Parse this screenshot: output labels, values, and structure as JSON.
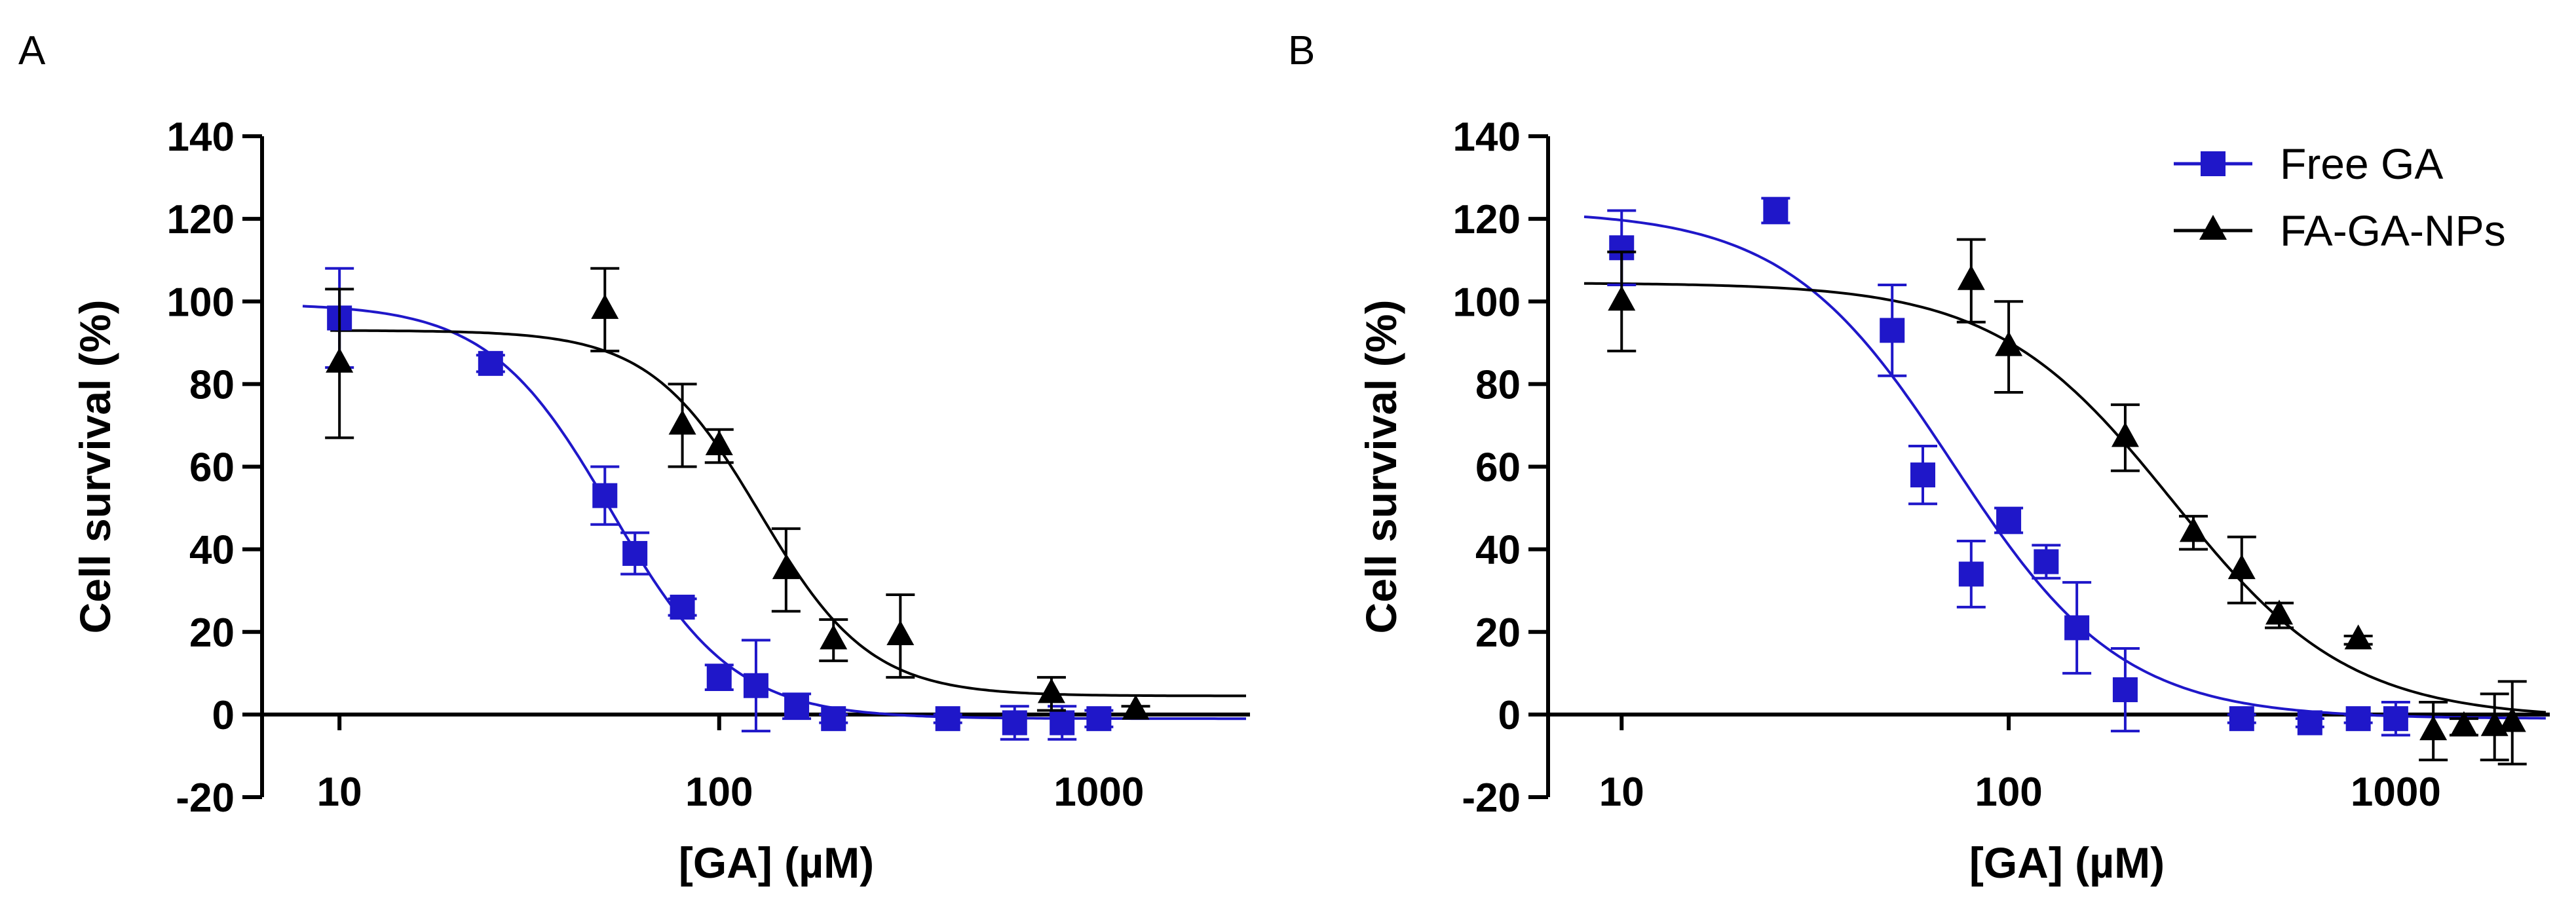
{
  "colors": {
    "free": "#1f17c9",
    "fa": "#000000",
    "axis": "#000000"
  },
  "legend": {
    "entries": [
      {
        "label": "Free GA",
        "series": 0,
        "marker": "square"
      },
      {
        "label": "FA-GA-NPs",
        "series": 1,
        "marker": "triangle"
      }
    ]
  },
  "chart_data": [
    {
      "panel": "A",
      "type": "scatter",
      "xscale": "log",
      "xlim": [
        8,
        2500
      ],
      "ylim": [
        -20,
        140
      ],
      "xticks": [
        10,
        100,
        1000
      ],
      "xtick_labels": [
        "10",
        "100",
        "1000"
      ],
      "yticks": [
        -20,
        0,
        20,
        40,
        60,
        80,
        100,
        120,
        140
      ],
      "ytick_labels": [
        "-20",
        "0",
        "20",
        "40",
        "60",
        "80",
        "100",
        "120",
        "140"
      ],
      "xlabel": "[GA] (µM)",
      "ylabel": "Cell survival (%)",
      "series": [
        {
          "name": "Free GA",
          "marker": "square",
          "x": [
            10,
            25,
            50,
            60,
            80,
            100,
            125,
            160,
            200,
            400,
            600,
            800,
            1000
          ],
          "y": [
            96,
            85,
            53,
            39,
            26,
            9,
            7,
            2,
            -1,
            -1,
            -2,
            -2,
            -1
          ],
          "err": [
            12,
            2,
            7,
            5,
            2,
            3,
            11,
            3,
            1,
            1,
            4,
            4,
            2
          ],
          "fit": {
            "top": 99.5,
            "bottom": -1,
            "ec50": 52,
            "hill": 2.7
          }
        },
        {
          "name": "FA-GA-NPs",
          "marker": "triangle",
          "x": [
            10,
            50,
            80,
            100,
            150,
            200,
            300,
            750,
            1250
          ],
          "y": [
            85,
            98,
            70,
            65,
            35,
            18,
            19,
            5,
            1
          ],
          "err": [
            18,
            10,
            10,
            4,
            10,
            5,
            10,
            4,
            1
          ],
          "fit": {
            "top": 93,
            "bottom": 4.5,
            "ec50": 128,
            "hill": 3.0
          }
        }
      ]
    },
    {
      "panel": "B",
      "type": "scatter",
      "xscale": "log",
      "xlim": [
        8,
        2500
      ],
      "ylim": [
        -20,
        140
      ],
      "xticks": [
        10,
        100,
        1000
      ],
      "xtick_labels": [
        "10",
        "100",
        "1000"
      ],
      "yticks": [
        -20,
        0,
        20,
        40,
        60,
        80,
        100,
        120,
        140
      ],
      "ytick_labels": [
        "-20",
        "0",
        "20",
        "40",
        "60",
        "80",
        "100",
        "120",
        "140"
      ],
      "xlabel": "[GA] (µM)",
      "ylabel": "Cell survival (%)",
      "series": [
        {
          "name": "Free GA",
          "marker": "square",
          "x": [
            10,
            25,
            50,
            60,
            80,
            100,
            125,
            150,
            200,
            400,
            600,
            800,
            1000
          ],
          "y": [
            113,
            122,
            93,
            58,
            34,
            47,
            37,
            21,
            6,
            -1,
            -2,
            -1,
            -1
          ],
          "err": [
            9,
            3,
            11,
            7,
            8,
            3,
            4,
            11,
            10,
            1,
            1,
            1,
            4
          ],
          "fit": {
            "top": 122,
            "bottom": -1,
            "ec50": 72,
            "hill": 2.0
          }
        },
        {
          "name": "FA-GA-NPs",
          "marker": "triangle",
          "x": [
            10,
            80,
            100,
            200,
            300,
            400,
            500,
            800,
            1250,
            1500,
            1800,
            2000
          ],
          "y": [
            100,
            105,
            89,
            67,
            44,
            35,
            24,
            18,
            -4,
            -3,
            -3,
            -2
          ],
          "err": [
            12,
            10,
            11,
            8,
            4,
            8,
            3,
            1,
            7,
            2,
            8,
            10
          ],
          "fit": {
            "top": 104.5,
            "bottom": -1,
            "ec50": 265,
            "hill": 1.9
          }
        }
      ]
    }
  ]
}
